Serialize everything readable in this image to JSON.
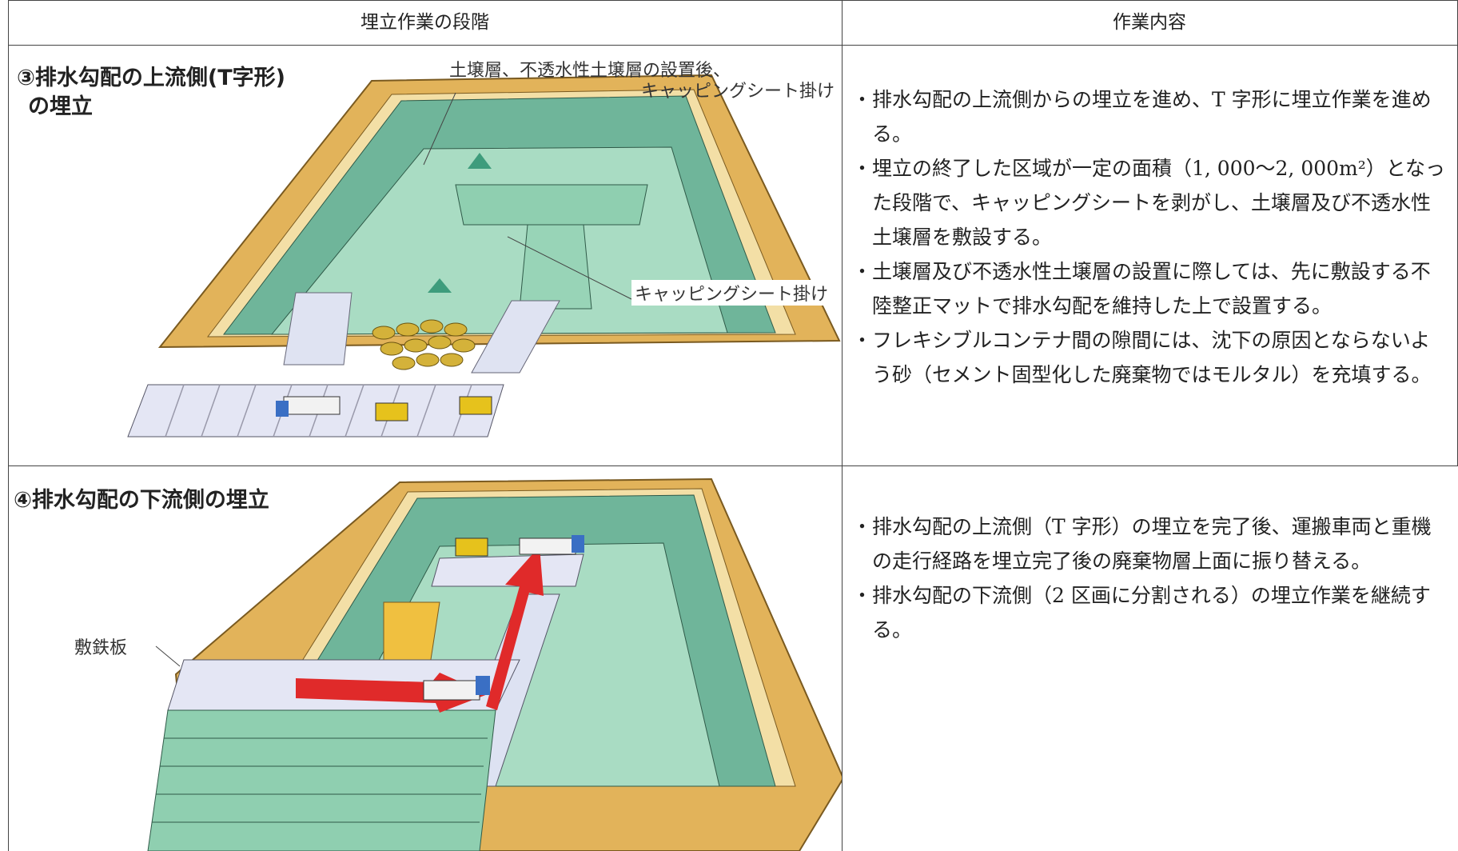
{
  "table": {
    "header": [
      "埋立作業の段階",
      "作業内容"
    ],
    "rows": [
      {
        "stage": {
          "title": [
            "③排水勾配の上流側(T字形)",
            "の埋立"
          ],
          "labels": [
            "土壌層、不透水性土壌層の設置後、",
            "キャッピングシート掛け",
            "キャッピングシート掛け"
          ]
        },
        "content": [
          "・排水勾配の上流側からの埋立を進め、T 字形に埋立作業を進める。",
          "・埋立の終了した区域が一定の面積（1, 000～2, 000m²）となった段階で、キャッピングシートを剥がし、土壌層及び不透水性土壌層を敷設する。",
          "・土壌層及び不透水性土壌層の設置に際しては、先に敷設する不陸整正マットで排水勾配を維持した上で設置する。",
          "・フレキシブルコンテナ間の隙間には、沈下の原因とならないよう砂（セメント固型化した廃棄物ではモルタル）を充填する。"
        ]
      },
      {
        "stage": {
          "title": [
            "④排水勾配の下流側の埋立"
          ],
          "labels": [
            "敷鉄板"
          ]
        },
        "content": [
          "・排水勾配の上流側（T 字形）の埋立を完了後、運搬車両と重機の走行経路を埋立完了後の廃棄物層上面に振り替える。",
          "・排水勾配の下流側（2 区画に分割される）の埋立作業を継続する。"
        ]
      }
    ]
  }
}
